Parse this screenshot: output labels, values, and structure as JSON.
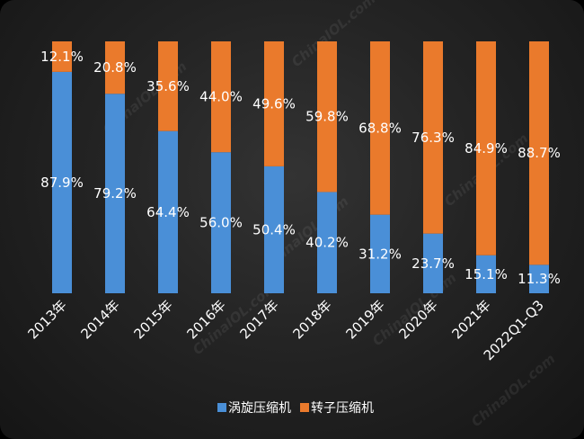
{
  "colors": {
    "series_1": "#4a8fd7",
    "series_2": "#ea7a2c",
    "text": "#ffffff",
    "background": "#262626"
  },
  "watermark": "ChinaIOL.com",
  "chart_data": {
    "type": "bar",
    "stacked": true,
    "percent_stacked": true,
    "categories": [
      "2013年",
      "2014年",
      "2015年",
      "2016年",
      "2017年",
      "2018年",
      "2019年",
      "2020年",
      "2021年",
      "2022Q1-Q3"
    ],
    "series": [
      {
        "name": "涡旋压缩机",
        "values": [
          87.9,
          79.2,
          64.4,
          56.0,
          50.4,
          40.2,
          31.2,
          23.7,
          15.1,
          11.3
        ],
        "labels": [
          "87.9%",
          "79.2%",
          "64.4%",
          "56.0%",
          "50.4%",
          "40.2%",
          "31.2%",
          "23.7%",
          "15.1%",
          "11.3%"
        ]
      },
      {
        "name": "转子压缩机",
        "values": [
          12.1,
          20.8,
          35.6,
          44.0,
          49.6,
          59.8,
          68.8,
          76.3,
          84.9,
          88.7
        ],
        "labels": [
          "12.1%",
          "20.8%",
          "35.6%",
          "44.0%",
          "49.6%",
          "59.8%",
          "68.8%",
          "76.3%",
          "84.9%",
          "88.7%"
        ]
      }
    ],
    "ylim": [
      0,
      100
    ],
    "grid": false,
    "legend_position": "bottom"
  }
}
